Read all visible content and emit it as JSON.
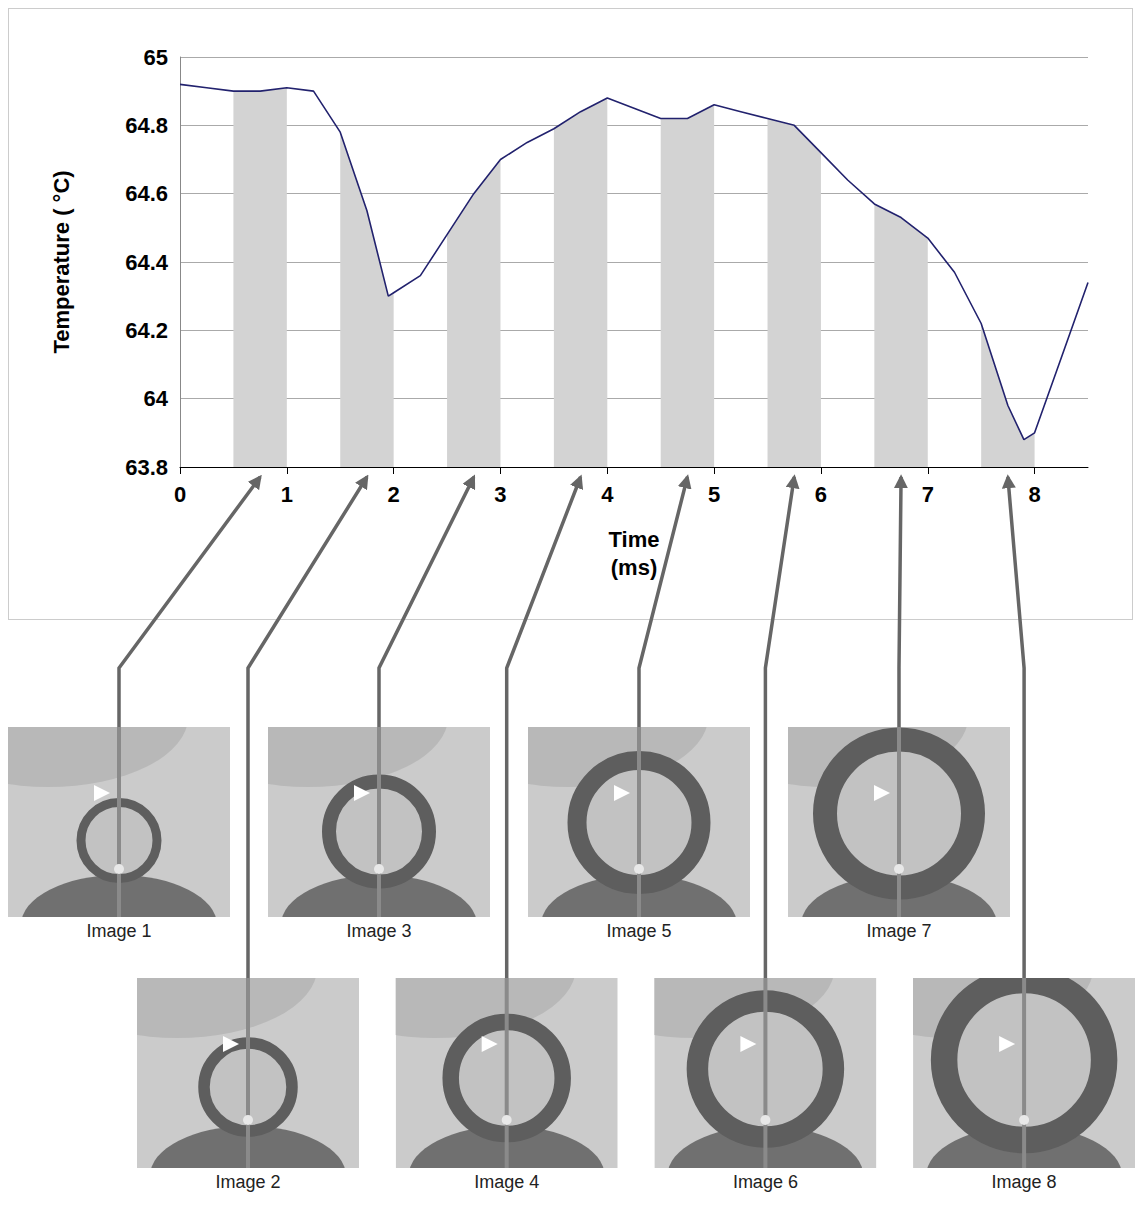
{
  "chart_data": {
    "type": "line",
    "x_label": "Time (ms)",
    "y_label": "Temperature ( °C)",
    "x": [
      0,
      0.25,
      0.5,
      0.75,
      1,
      1.25,
      1.5,
      1.75,
      1.95,
      2,
      2.25,
      2.5,
      2.75,
      3,
      3.25,
      3.5,
      3.75,
      4,
      4.25,
      4.5,
      4.75,
      5,
      5.25,
      5.5,
      5.75,
      6,
      6.25,
      6.5,
      6.75,
      7,
      7.25,
      7.5,
      7.75,
      7.9,
      8,
      8.25,
      8.5
    ],
    "values": [
      64.92,
      64.91,
      64.9,
      64.9,
      64.91,
      64.9,
      64.78,
      64.55,
      64.3,
      64.31,
      64.36,
      64.48,
      64.6,
      64.7,
      64.75,
      64.79,
      64.84,
      64.88,
      64.85,
      64.82,
      64.82,
      64.86,
      64.84,
      64.82,
      64.8,
      64.72,
      64.64,
      64.57,
      64.53,
      64.47,
      64.37,
      64.22,
      63.98,
      63.88,
      63.9,
      64.12,
      64.34
    ],
    "color": "#22226e",
    "xlim": [
      0,
      8.5
    ],
    "xticks": [
      0,
      1,
      2,
      3,
      4,
      5,
      6,
      7,
      8
    ],
    "ylim": [
      63.8,
      65
    ],
    "yticks": [
      63.8,
      64,
      64.2,
      64.4,
      64.6,
      64.8,
      65
    ],
    "grid": true,
    "bands": [
      [
        0.5,
        1
      ],
      [
        1.5,
        2
      ],
      [
        2.5,
        3
      ],
      [
        3.5,
        4
      ],
      [
        4.5,
        5
      ],
      [
        5.5,
        6
      ],
      [
        6.5,
        7
      ],
      [
        7.5,
        8
      ]
    ],
    "images": [
      "Image 1",
      "Image 2",
      "Image 3",
      "Image 4",
      "Image 5",
      "Image 6",
      "Image 7",
      "Image 8"
    ]
  }
}
